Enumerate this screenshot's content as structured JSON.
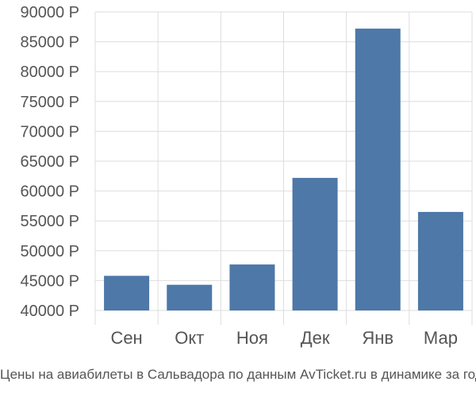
{
  "chart_data": {
    "type": "bar",
    "categories": [
      "Сен",
      "Окт",
      "Ноя",
      "Дек",
      "Янв",
      "Мар"
    ],
    "values": [
      45800,
      44300,
      47700,
      62200,
      87200,
      56500
    ],
    "ylim": [
      40000,
      90000
    ],
    "yticks": [
      40000,
      45000,
      50000,
      55000,
      60000,
      65000,
      70000,
      75000,
      80000,
      85000,
      90000
    ],
    "ytick_labels": [
      "40000 Р",
      "45000 Р",
      "50000 Р",
      "55000 Р",
      "60000 Р",
      "65000 Р",
      "70000 Р",
      "75000 Р",
      "80000 Р",
      "85000 Р",
      "90000 Р"
    ],
    "bar_color": "#4d78a8",
    "grid": true,
    "xlabel": "",
    "ylabel": ""
  },
  "caption": "Цены на авиабилеты в Сальвадора по данным AvTicket.ru в динамике за год."
}
